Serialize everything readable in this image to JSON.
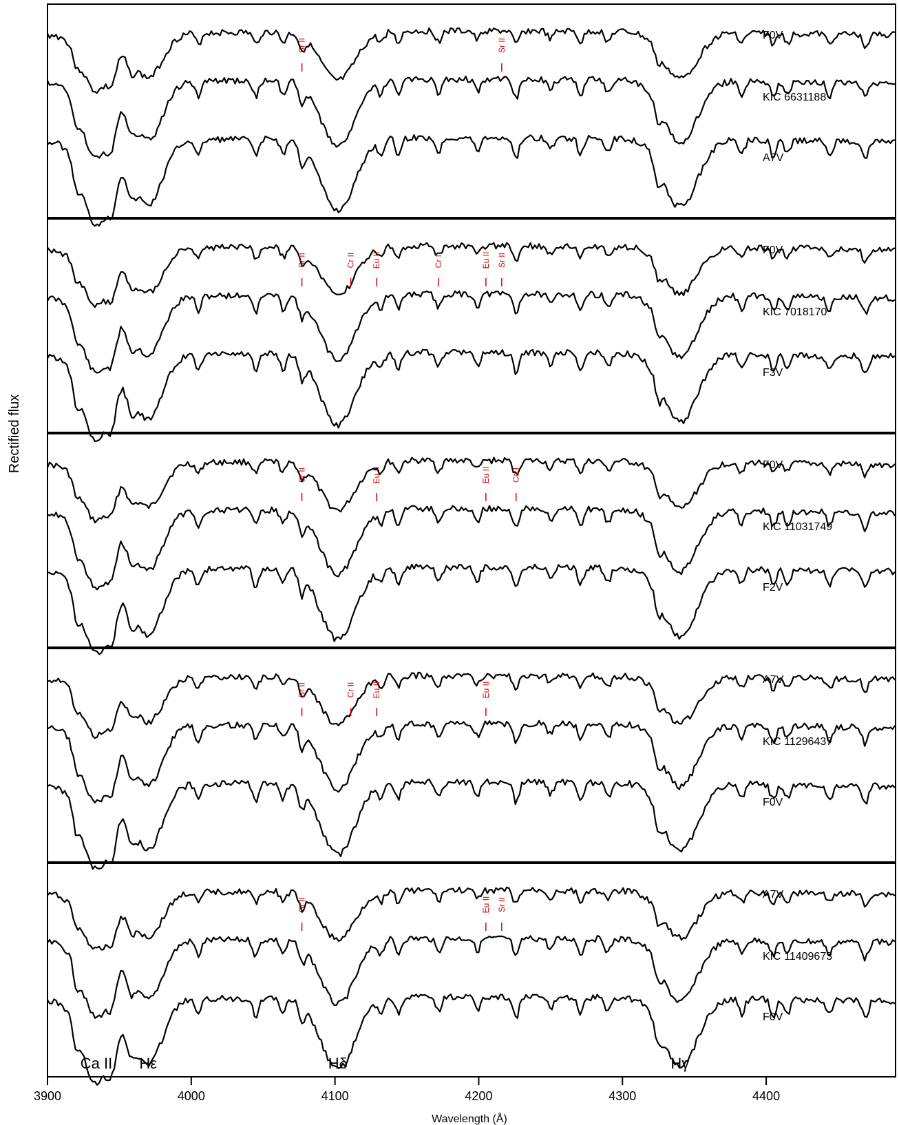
{
  "chart_data": {
    "type": "line",
    "xlabel": "Wavelength (Å)",
    "ylabel": "Rectified flux",
    "xlim": [
      3900,
      4490
    ],
    "xticks": [
      "3900",
      "4000",
      "4100",
      "4200",
      "4300",
      "4400"
    ],
    "features": [
      {
        "label": "Ca II",
        "x": 3934
      },
      {
        "label": "Hε",
        "x": 3970
      },
      {
        "label": "Hδ",
        "x": 4102
      },
      {
        "label": "Hγ",
        "x": 4340
      }
    ],
    "panels": [
      {
        "series": [
          {
            "name": "F0V"
          },
          {
            "name": "KIC 6631188"
          },
          {
            "name": "A7V"
          }
        ],
        "lines": [
          {
            "label": "Sr II",
            "x": 4077
          },
          {
            "label": "Sr II",
            "x": 4216
          }
        ]
      },
      {
        "series": [
          {
            "name": "F0V"
          },
          {
            "name": "KIC 7018170"
          },
          {
            "name": "F3V"
          }
        ],
        "lines": [
          {
            "label": "Sr II",
            "x": 4077
          },
          {
            "label": "Cr II",
            "x": 4111
          },
          {
            "label": "Eu II",
            "x": 4129
          },
          {
            "label": "Cr II",
            "x": 4172
          },
          {
            "label": "Eu II",
            "x": 4205
          },
          {
            "label": "Sr II",
            "x": 4216
          }
        ]
      },
      {
        "series": [
          {
            "name": "F0V"
          },
          {
            "name": "KIC 11031749"
          },
          {
            "name": "F2V"
          }
        ],
        "lines": [
          {
            "label": "Sr II",
            "x": 4077
          },
          {
            "label": "Eu II",
            "x": 4129
          },
          {
            "label": "Eu II",
            "x": 4205
          },
          {
            "label": "Ca I",
            "x": 4226
          }
        ]
      },
      {
        "series": [
          {
            "name": "A7V"
          },
          {
            "name": "KIC 11296437"
          },
          {
            "name": "F0V"
          }
        ],
        "lines": [
          {
            "label": "Sr II",
            "x": 4077
          },
          {
            "label": "Cr II",
            "x": 4111
          },
          {
            "label": "Eu II",
            "x": 4129
          },
          {
            "label": "Eu II",
            "x": 4205
          }
        ]
      },
      {
        "series": [
          {
            "name": "A7V"
          },
          {
            "name": "KIC 11409673"
          },
          {
            "name": "F0V"
          }
        ],
        "lines": [
          {
            "label": "Sr II",
            "x": 4077
          },
          {
            "label": "Eu II",
            "x": 4205
          },
          {
            "label": "Sr II",
            "x": 4216
          }
        ]
      }
    ]
  }
}
